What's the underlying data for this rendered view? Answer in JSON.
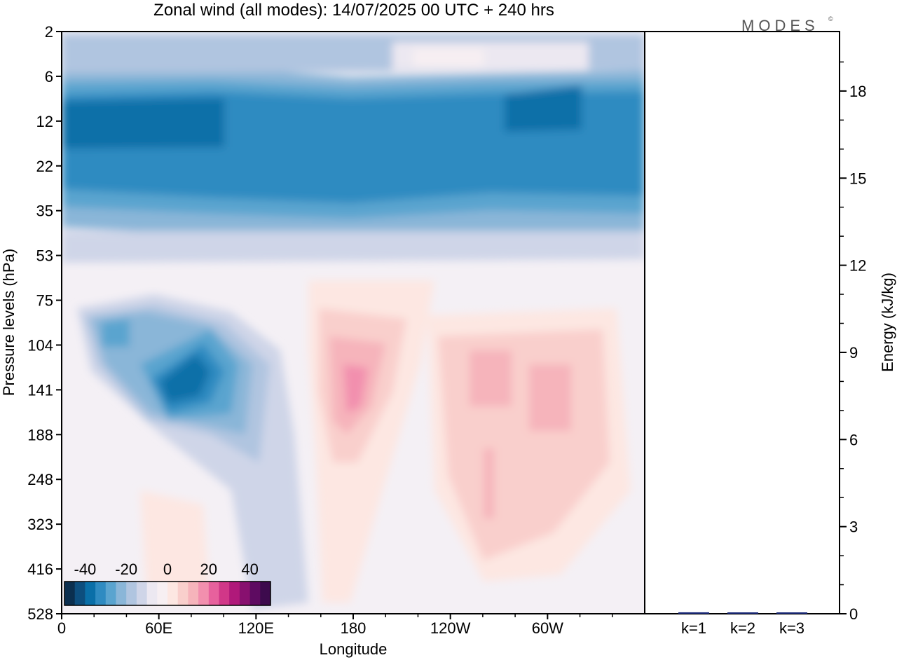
{
  "title": "Zonal wind (all modes):  14/07/2025  00 UTC  + 240 hrs",
  "logo": "MODES",
  "logo_mark": "©",
  "colors": {
    "scale": [
      "#0b2f4f",
      "#0d4e7e",
      "#0a6fa8",
      "#2f8bc1",
      "#5aa4cf",
      "#8ab6d8",
      "#b0c5e0",
      "#cfd5e8",
      "#ece8f1",
      "#f7eff2",
      "#fde7e2",
      "#f9cfcc",
      "#f6b4bb",
      "#f28fae",
      "#e7619d",
      "#d13788",
      "#b0197a",
      "#88106f",
      "#5e0b61",
      "#3d0a4d"
    ],
    "frame": "#000000",
    "bar": "#1a2a7a"
  },
  "chart_data": [
    {
      "type": "heatmap",
      "variable": "Zonal wind",
      "xlabel": "Longitude",
      "ylabel": "Pressure levels (hPa)",
      "x_ticks": [
        "0",
        "60E",
        "120E",
        "180",
        "120W",
        "60W"
      ],
      "y_ticks": [
        "2",
        "6",
        "12",
        "22",
        "35",
        "53",
        "75",
        "104",
        "141",
        "188",
        "248",
        "323",
        "416",
        "528"
      ],
      "colorbar": {
        "ticks": [
          "-40",
          "-20",
          "0",
          "20",
          "40"
        ],
        "range": [
          -50,
          50
        ],
        "step": 5
      },
      "features": [
        {
          "region": "easterly jet",
          "lon_range": [
            "0",
            "60W"
          ],
          "levels_hPa": [
            6,
            35
          ],
          "value": -35
        },
        {
          "region": "easterly maximum",
          "lon_center": "75E",
          "level_hPa": 141,
          "value": -40
        },
        {
          "region": "westerly maximum",
          "lon_center": "175E",
          "level_hPa": 141,
          "value": 25
        },
        {
          "region": "westerly area",
          "lon_range": [
            "140W",
            "40W"
          ],
          "levels_hPa": [
            104,
            323
          ],
          "value": 15
        }
      ]
    },
    {
      "type": "bar",
      "categories": [
        "k=1",
        "k=2",
        "k=3"
      ],
      "values": [
        0.05,
        0.02,
        0.02
      ],
      "ylabel": "Energy (kJ/kg)",
      "ylim": [
        0,
        20
      ],
      "y_ticks": [
        "0",
        "3",
        "6",
        "9",
        "12",
        "15",
        "18"
      ]
    }
  ]
}
